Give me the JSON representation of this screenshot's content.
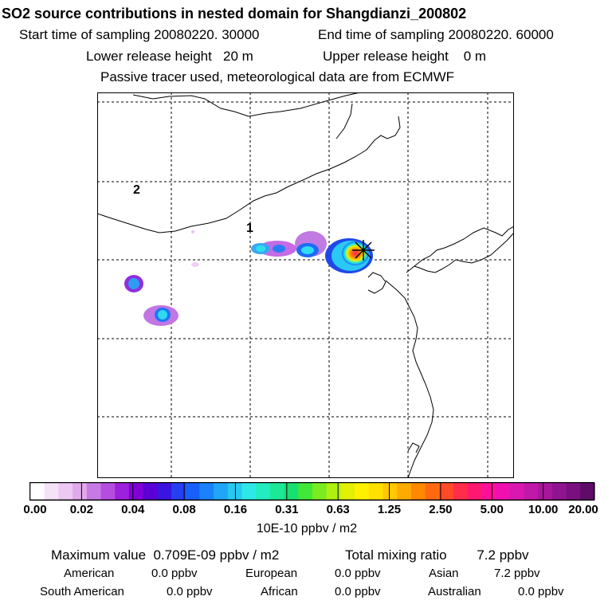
{
  "header": {
    "title": "SO2 source contributions in nested domain for Shangdianzi_200802",
    "start_time": "Start time of sampling 20080220. 30000",
    "end_time": "End time of sampling 20080220. 60000",
    "lower_height": "Lower release height   20 m",
    "upper_height": "Upper release height    0 m",
    "tracer_note": "Passive tracer used, meteorological data are from ECMWF"
  },
  "map": {
    "region_labels": [
      "2",
      "1"
    ],
    "receptor_marker": "star-marker"
  },
  "colorbar": {
    "tick_labels": [
      "0.00",
      "0.02",
      "0.04",
      "0.08",
      "0.16",
      "0.31",
      "0.63",
      "1.25",
      "2.50",
      "5.00",
      "10.00",
      "20.00"
    ],
    "colors": [
      "#ffffff",
      "#f5e1f8",
      "#ecc8f2",
      "#e1a9ec",
      "#c87ae4",
      "#b54ee0",
      "#9c20dc",
      "#8200d8",
      "#5a00d6",
      "#3a14e0",
      "#2440f0",
      "#1860fa",
      "#1a82fa",
      "#20a6f7",
      "#28c8f0",
      "#2ee8e8",
      "#22ecc0",
      "#1ce898",
      "#18e070",
      "#40e838",
      "#7aec20",
      "#b0f010",
      "#e0f000",
      "#fff000",
      "#ffe000",
      "#ffc800",
      "#ffaa00",
      "#ff8800",
      "#ff6a10",
      "#ff4a28",
      "#ff2c4a",
      "#ff1870",
      "#ff1098",
      "#f010b0",
      "#d818b0",
      "#c018a8",
      "#a8169c",
      "#901490",
      "#7a1080",
      "#5e0c68"
    ],
    "units": "10E-10 ppbv / m2"
  },
  "summary": {
    "max_value": "Maximum value  0.709E-09 ppbv / m2",
    "total_mixing": "Total mixing ratio        7.2 ppbv",
    "american_label": "American",
    "american_value": "0.0 ppbv",
    "european_label": "European",
    "european_value": "0.0 ppbv",
    "asian_label": "Asian",
    "asian_value": "7.2 ppbv",
    "south_american_label": "South American",
    "south_american_value": "0.0 ppbv",
    "african_label": "African",
    "african_value": "0.0 ppbv",
    "australian_label": "Australian",
    "australian_value": "0.0 ppbv"
  }
}
